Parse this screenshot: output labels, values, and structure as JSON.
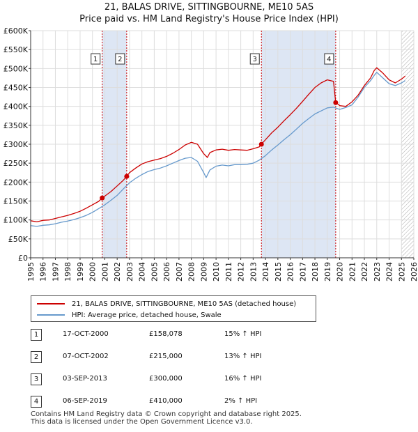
{
  "title": "21, BALAS DRIVE, SITTINGBOURNE, ME10 5AS",
  "subtitle": "Price paid vs. HM Land Registry's House Price Index (HPI)",
  "colors": {
    "property": "#cc0000",
    "hpi": "#6699cc",
    "shade": "#dde6f4",
    "grid": "#dddddd",
    "marker_line": "#cc0000"
  },
  "legend": {
    "property_label": "21, BALAS DRIVE, SITTINGBOURNE, ME10 5AS (detached house)",
    "hpi_label": "HPI: Average price, detached house, Swale"
  },
  "sales": [
    {
      "num": "1",
      "date": "17-OCT-2000",
      "price": "£158,078",
      "hpi_change": "15% ↑ HPI"
    },
    {
      "num": "2",
      "date": "07-OCT-2002",
      "price": "£215,000",
      "hpi_change": "13% ↑ HPI"
    },
    {
      "num": "3",
      "date": "03-SEP-2013",
      "price": "£300,000",
      "hpi_change": "16% ↑ HPI"
    },
    {
      "num": "4",
      "date": "06-SEP-2019",
      "price": "£410,000",
      "hpi_change": "2% ↑ HPI"
    }
  ],
  "footer": {
    "line1": "Contains HM Land Registry data © Crown copyright and database right 2025.",
    "line2": "This data is licensed under the Open Government Licence v3.0."
  },
  "chart_data": {
    "type": "line",
    "xlim": [
      1995,
      2026
    ],
    "ylim": [
      0,
      600000
    ],
    "x_ticks": [
      1995,
      1996,
      1997,
      1998,
      1999,
      2000,
      2001,
      2002,
      2003,
      2004,
      2005,
      2006,
      2007,
      2008,
      2009,
      2010,
      2011,
      2012,
      2013,
      2014,
      2015,
      2016,
      2017,
      2018,
      2019,
      2020,
      2021,
      2022,
      2023,
      2024,
      2025,
      2026
    ],
    "y_ticks": [
      {
        "value": 0,
        "label": "£0"
      },
      {
        "value": 50000,
        "label": "£50K"
      },
      {
        "value": 100000,
        "label": "£100K"
      },
      {
        "value": 150000,
        "label": "£150K"
      },
      {
        "value": 200000,
        "label": "£200K"
      },
      {
        "value": 250000,
        "label": "£250K"
      },
      {
        "value": 300000,
        "label": "£300K"
      },
      {
        "value": 350000,
        "label": "£350K"
      },
      {
        "value": 400000,
        "label": "£400K"
      },
      {
        "value": 450000,
        "label": "£450K"
      },
      {
        "value": 500000,
        "label": "£500K"
      },
      {
        "value": 550000,
        "label": "£550K"
      },
      {
        "value": 600000,
        "label": "£600K"
      }
    ],
    "shaded_ranges": [
      [
        2000.79,
        2002.77
      ],
      [
        2013.67,
        2019.68
      ]
    ],
    "hatched_from": 2025.0,
    "sale_points": [
      {
        "label": "1",
        "x": 2000.79,
        "y": 158078
      },
      {
        "label": "2",
        "x": 2002.77,
        "y": 215000
      },
      {
        "label": "3",
        "x": 2013.67,
        "y": 300000
      },
      {
        "label": "4",
        "x": 2019.68,
        "y": 410000
      }
    ],
    "series": [
      {
        "name": "21, BALAS DRIVE, SITTINGBOURNE, ME10 5AS (detached house)",
        "x": [
          1995.0,
          1995.5,
          1996.0,
          1996.5,
          1997.0,
          1997.5,
          1998.0,
          1998.5,
          1999.0,
          1999.5,
          2000.0,
          2000.5,
          2000.79,
          2001.0,
          2001.5,
          2002.0,
          2002.5,
          2002.77,
          2003.0,
          2003.5,
          2004.0,
          2004.5,
          2005.0,
          2005.5,
          2006.0,
          2006.5,
          2007.0,
          2007.5,
          2008.0,
          2008.5,
          2009.0,
          2009.3,
          2009.5,
          2010.0,
          2010.5,
          2011.0,
          2011.5,
          2012.0,
          2012.5,
          2013.0,
          2013.5,
          2013.67,
          2014.0,
          2014.5,
          2015.0,
          2015.5,
          2016.0,
          2016.5,
          2017.0,
          2017.5,
          2018.0,
          2018.5,
          2019.0,
          2019.5,
          2019.68,
          2019.9,
          2020.0,
          2020.5,
          2021.0,
          2021.5,
          2022.0,
          2022.5,
          2022.8,
          2023.0,
          2023.5,
          2024.0,
          2024.5,
          2025.0,
          2025.3
        ],
        "values": [
          98000,
          95000,
          99000,
          100000,
          104000,
          108000,
          112000,
          117000,
          123000,
          131000,
          140000,
          149000,
          158078,
          163000,
          175000,
          190000,
          205000,
          215000,
          225000,
          237000,
          248000,
          254000,
          258000,
          262000,
          268000,
          276000,
          286000,
          298000,
          305000,
          300000,
          275000,
          265000,
          278000,
          285000,
          287000,
          284000,
          286000,
          285000,
          284000,
          288000,
          293000,
          300000,
          312000,
          330000,
          345000,
          362000,
          378000,
          395000,
          413000,
          432000,
          450000,
          462000,
          470000,
          466000,
          410000,
          405000,
          402000,
          400000,
          412000,
          430000,
          455000,
          475000,
          495000,
          502000,
          488000,
          470000,
          462000,
          472000,
          480000
        ]
      },
      {
        "name": "HPI: Average price, detached house, Swale",
        "x": [
          1995.0,
          1995.5,
          1996.0,
          1996.5,
          1997.0,
          1997.5,
          1998.0,
          1998.5,
          1999.0,
          1999.5,
          2000.0,
          2000.5,
          2001.0,
          2001.5,
          2002.0,
          2002.5,
          2003.0,
          2003.5,
          2004.0,
          2004.5,
          2005.0,
          2005.5,
          2006.0,
          2006.5,
          2007.0,
          2007.5,
          2008.0,
          2008.5,
          2009.0,
          2009.2,
          2009.5,
          2010.0,
          2010.5,
          2011.0,
          2011.5,
          2012.0,
          2012.5,
          2013.0,
          2013.5,
          2014.0,
          2014.5,
          2015.0,
          2015.5,
          2016.0,
          2016.5,
          2017.0,
          2017.5,
          2018.0,
          2018.5,
          2019.0,
          2019.5,
          2020.0,
          2020.5,
          2021.0,
          2021.5,
          2022.0,
          2022.5,
          2022.8,
          2023.0,
          2023.5,
          2024.0,
          2024.5,
          2025.0,
          2025.3
        ],
        "values": [
          85000,
          83000,
          86000,
          87000,
          90000,
          94000,
          97000,
          101000,
          106000,
          112000,
          120000,
          130000,
          140000,
          152000,
          165000,
          182000,
          198000,
          210000,
          220000,
          228000,
          233000,
          237000,
          243000,
          250000,
          257000,
          263000,
          265000,
          255000,
          225000,
          212000,
          232000,
          242000,
          245000,
          243000,
          246000,
          246000,
          247000,
          250000,
          258000,
          270000,
          285000,
          298000,
          312000,
          325000,
          340000,
          355000,
          368000,
          380000,
          388000,
          396000,
          398000,
          392000,
          397000,
          404000,
          425000,
          450000,
          468000,
          482000,
          490000,
          475000,
          460000,
          455000,
          462000,
          468000
        ]
      }
    ]
  }
}
